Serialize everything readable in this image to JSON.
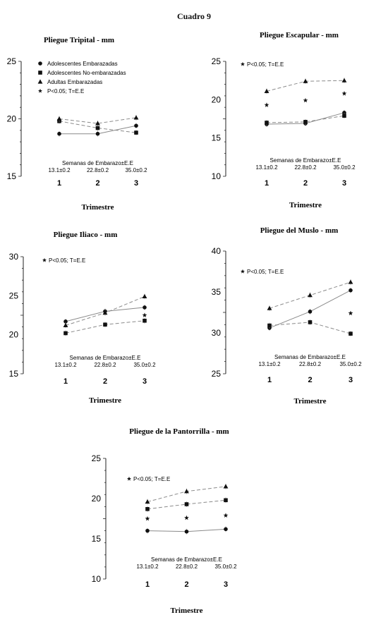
{
  "page_title": "Cuadro 9",
  "x_title": "Trimestre",
  "weeks_label": "Semanas de Embarazo±E.E",
  "weeks_values": [
    "13.1±0.2",
    "22.8±0.2",
    "35.0±0.2"
  ],
  "sig_note": "P<0.05; T=E.E",
  "legend_labels": [
    "Adolescentes Embarazadas",
    "Adolescentes No-embarazadas",
    "Adultas Embarazadas",
    "P<0.05; T=E.E"
  ],
  "chart_data": [
    {
      "type": "line",
      "title": "Pliegue Tripital - mm",
      "xlabel": "Trimestre",
      "x": [
        1,
        2,
        3
      ],
      "ylim": [
        15,
        25
      ],
      "yticks": [
        15,
        20,
        25
      ],
      "series": [
        {
          "name": "Adolescentes Embarazadas",
          "values": [
            18.7,
            18.7,
            19.4
          ]
        },
        {
          "name": "Adolescentes No-embarazadas",
          "values": [
            19.8,
            19.2,
            18.8
          ]
        },
        {
          "name": "Adultas Embarazadas",
          "values": [
            20.0,
            19.6,
            20.1
          ]
        }
      ],
      "significance": []
    },
    {
      "type": "line",
      "title": "Pliegue Escapular - mm",
      "xlabel": "Trimestre",
      "x": [
        1,
        2,
        3
      ],
      "ylim": [
        10,
        25
      ],
      "yticks": [
        10,
        15,
        20,
        25
      ],
      "series": [
        {
          "name": "Adolescentes Embarazadas",
          "values": [
            16.8,
            16.9,
            18.3
          ]
        },
        {
          "name": "Adolescentes No-embarazadas",
          "values": [
            17.0,
            17.1,
            17.9
          ]
        },
        {
          "name": "Adultas Embarazadas",
          "values": [
            21.1,
            22.4,
            22.5
          ]
        }
      ],
      "significance": [
        {
          "x": 1,
          "y": 19.3
        },
        {
          "x": 2,
          "y": 19.9
        },
        {
          "x": 3,
          "y": 20.8
        }
      ]
    },
    {
      "type": "line",
      "title": "Pliegue Iliaco - mm",
      "xlabel": "Trimestre",
      "x": [
        1,
        2,
        3
      ],
      "ylim": [
        15,
        30
      ],
      "yticks": [
        15,
        20,
        25,
        30
      ],
      "series": [
        {
          "name": "Adolescentes Embarazadas",
          "values": [
            21.7,
            23.0,
            23.5
          ]
        },
        {
          "name": "Adolescentes No-embarazadas",
          "values": [
            20.2,
            21.3,
            21.8
          ]
        },
        {
          "name": "Adultas Embarazadas",
          "values": [
            21.2,
            22.8,
            24.9
          ]
        }
      ],
      "significance": [
        {
          "x": 3,
          "y": 22.5
        }
      ]
    },
    {
      "type": "line",
      "title": "Pliegue del Muslo - mm",
      "xlabel": "Trimestre",
      "x": [
        1,
        2,
        3
      ],
      "ylim": [
        25,
        40
      ],
      "yticks": [
        25,
        30,
        35,
        40
      ],
      "series": [
        {
          "name": "Adolescentes Embarazadas",
          "values": [
            30.6,
            32.6,
            35.2
          ]
        },
        {
          "name": "Adolescentes No-embarazadas",
          "values": [
            30.9,
            31.3,
            29.9
          ]
        },
        {
          "name": "Adultas Embarazadas",
          "values": [
            33.0,
            34.6,
            36.2
          ]
        }
      ],
      "significance": [
        {
          "x": 3,
          "y": 32.4
        }
      ]
    },
    {
      "type": "line",
      "title": "Pliegue de la Pantorrilla - mm",
      "xlabel": "Trimestre",
      "x": [
        1,
        2,
        3
      ],
      "ylim": [
        10,
        25
      ],
      "yticks": [
        10,
        15,
        20,
        25
      ],
      "series": [
        {
          "name": "Adolescentes Embarazadas",
          "values": [
            16.0,
            15.9,
            16.2
          ]
        },
        {
          "name": "Adolescentes No-embarazadas",
          "values": [
            18.7,
            19.3,
            19.8
          ]
        },
        {
          "name": "Adultas Embarazadas",
          "values": [
            19.6,
            20.9,
            21.5
          ]
        }
      ],
      "significance": [
        {
          "x": 1,
          "y": 17.5
        },
        {
          "x": 2,
          "y": 17.6
        },
        {
          "x": 3,
          "y": 17.9
        }
      ]
    }
  ]
}
